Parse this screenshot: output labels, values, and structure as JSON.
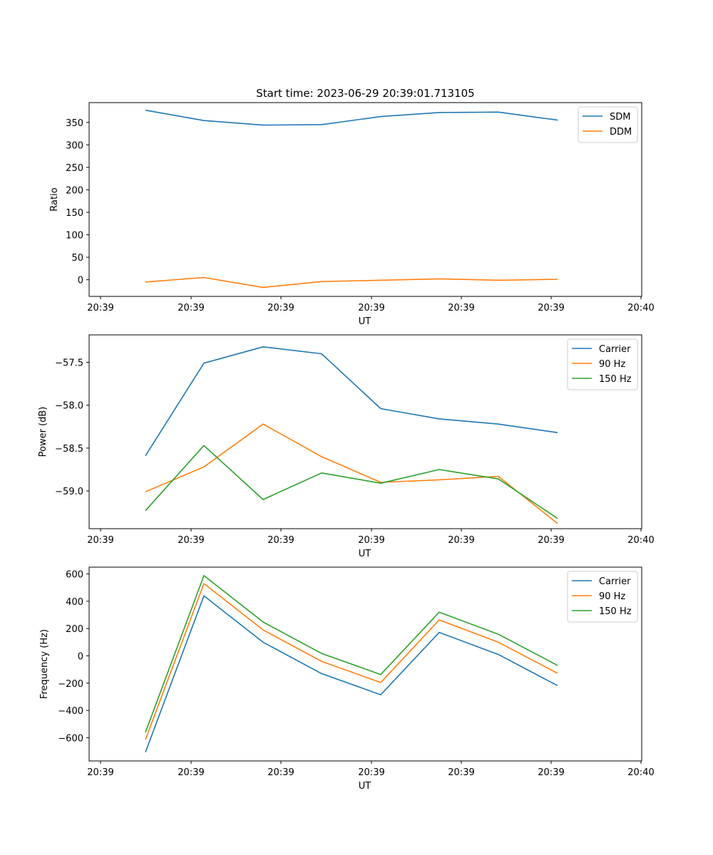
{
  "chart_data": [
    {
      "type": "line",
      "title": "Start time: 2023-06-29 20:39:01.713105",
      "xlabel": "UT",
      "ylabel": "Ratio",
      "x_tick_labels": [
        "20:39",
        "20:39",
        "20:39",
        "20:39",
        "20:39",
        "20:39",
        "20:39",
        "20:40"
      ],
      "yticks": [
        0,
        50,
        100,
        150,
        200,
        250,
        300,
        350
      ],
      "ylim": [
        -37,
        394
      ],
      "legend": "upper-right",
      "grid": false,
      "series": [
        {
          "name": "SDM",
          "color": "#1f77b4",
          "values": [
            377,
            354,
            344,
            345,
            363,
            372,
            373,
            355
          ]
        },
        {
          "name": "DDM",
          "color": "#ff7f0e",
          "values": [
            -5,
            5,
            -17,
            -4,
            -1,
            2,
            -1,
            1
          ]
        }
      ]
    },
    {
      "type": "line",
      "title": "",
      "xlabel": "UT",
      "ylabel": "Power (dB)",
      "x_tick_labels": [
        "20:39",
        "20:39",
        "20:39",
        "20:39",
        "20:39",
        "20:39",
        "20:39",
        "20:40"
      ],
      "yticks": [
        -59.0,
        -58.5,
        -58.0,
        -57.5
      ],
      "ytick_labels": [
        "−59.0",
        "−58.5",
        "−58.0",
        "−57.5"
      ],
      "ylim": [
        -59.44,
        -57.18
      ],
      "legend": "upper-right",
      "grid": false,
      "series": [
        {
          "name": "Carrier",
          "color": "#1f77b4",
          "values": [
            -58.59,
            -57.51,
            -57.32,
            -57.4,
            -58.04,
            -58.16,
            -58.22,
            -58.32
          ]
        },
        {
          "name": "90 Hz",
          "color": "#ff7f0e",
          "values": [
            -59.01,
            -58.72,
            -58.22,
            -58.6,
            -58.9,
            -58.87,
            -58.83,
            -59.38
          ]
        },
        {
          "name": "150 Hz",
          "color": "#2ca02c",
          "values": [
            -59.23,
            -58.47,
            -59.1,
            -58.79,
            -58.91,
            -58.75,
            -58.86,
            -59.32
          ]
        }
      ]
    },
    {
      "type": "line",
      "title": "",
      "xlabel": "UT",
      "ylabel": "Frequency (Hz)",
      "x_tick_labels": [
        "20:39",
        "20:39",
        "20:39",
        "20:39",
        "20:39",
        "20:39",
        "20:39",
        "20:40"
      ],
      "yticks": [
        -600,
        -400,
        -200,
        0,
        200,
        400,
        600
      ],
      "ytick_labels": [
        "−600",
        "−400",
        "−200",
        "0",
        "200",
        "400",
        "600"
      ],
      "ylim": [
        -770,
        650
      ],
      "legend": "upper-right",
      "grid": false,
      "series": [
        {
          "name": "Carrier",
          "color": "#1f77b4",
          "values": [
            -706,
            440,
            100,
            -130,
            -285,
            172,
            10,
            -218
          ]
        },
        {
          "name": "90 Hz",
          "color": "#ff7f0e",
          "values": [
            -614,
            530,
            190,
            -40,
            -195,
            263,
            100,
            -128
          ]
        },
        {
          "name": "150 Hz",
          "color": "#2ca02c",
          "values": [
            -560,
            588,
            248,
            18,
            -137,
            320,
            158,
            -70
          ]
        }
      ]
    }
  ]
}
